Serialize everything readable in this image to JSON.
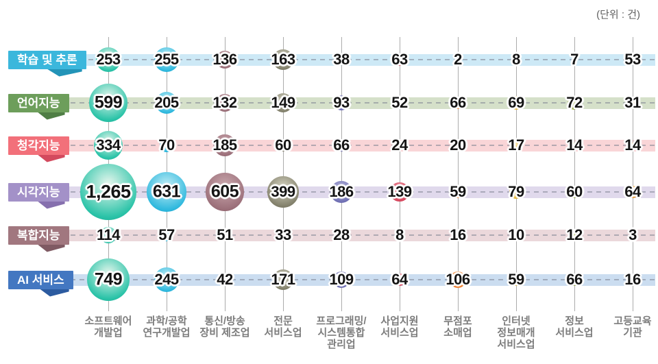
{
  "unit_label": "(단위 : 건)",
  "chart_data": {
    "type": "heatmap",
    "subtype": "bubble-matrix",
    "title": "",
    "unit": "건",
    "legend_position": "none",
    "grid": true,
    "columns": [
      {
        "label": "소프트웨어\n개발업",
        "bubble_color": "#2bc3a8",
        "bubble_light": "#e8f7ee",
        "bubble_dark": "#0fa18c"
      },
      {
        "label": "과학/공학\n연구개발업",
        "bubble_color": "#30b9de",
        "bubble_light": "#c6eff6",
        "bubble_dark": "#0e95c0"
      },
      {
        "label": "통신/방송\n장비 제조업",
        "bubble_color": "#9c707a",
        "bubble_light": "#cba9af",
        "bubble_dark": "#7e525c"
      },
      {
        "label": "전문\n서비스업",
        "bubble_color": "#83816c",
        "bubble_light": "#d6d4c2",
        "bubble_dark": "#676553"
      },
      {
        "label": "프로그래밍/\n시스템통합\n관리업",
        "bubble_color": "#7171b5",
        "bubble_light": "#bcbcde",
        "bubble_dark": "#55559a"
      },
      {
        "label": "사업지원\n서비스업",
        "bubble_color": "#d94a60",
        "bubble_light": "#ec9fab",
        "bubble_dark": "#b82f48"
      },
      {
        "label": "무점포\n소매업",
        "bubble_color": "#f08233",
        "bubble_light": "#fbc998",
        "bubble_dark": "#d3661a"
      },
      {
        "label": "인터넷\n정보매개\n서비스업",
        "bubble_color": "#e7bb42",
        "bubble_light": "#f8e3a8",
        "bubble_dark": "#c89b28"
      },
      {
        "label": "정보\n서비스업",
        "bubble_color": "#94a645",
        "bubble_light": "#d9e2a9",
        "bubble_dark": "#778a2f"
      },
      {
        "label": "고등교육\n기관",
        "bubble_color": "#ea9c34",
        "bubble_light": "#f9d49c",
        "bubble_dark": "#cc7f1e"
      }
    ],
    "rows": [
      {
        "label": "학습 및 추론",
        "ribbon_color": "#3bb7dc",
        "fold_color": "#2394b8",
        "band_color": "#cde9f6",
        "values": [
          253,
          255,
          136,
          163,
          38,
          63,
          2,
          8,
          7,
          53
        ]
      },
      {
        "label": "언어지능",
        "ribbon_color": "#6d9e5b",
        "fold_color": "#4f7e45",
        "band_color": "#d5e0c9",
        "values": [
          599,
          205,
          132,
          149,
          93,
          52,
          66,
          69,
          72,
          31
        ]
      },
      {
        "label": "청각지능",
        "ribbon_color": "#f2707a",
        "fold_color": "#d34a5e",
        "band_color": "#f9d5d7",
        "values": [
          334,
          70,
          185,
          60,
          66,
          24,
          20,
          17,
          14,
          14
        ]
      },
      {
        "label": "시각지능",
        "ribbon_color": "#a391c8",
        "fold_color": "#8670ae",
        "band_color": "#e0d9ec",
        "values": [
          1265,
          631,
          605,
          399,
          186,
          139,
          59,
          79,
          60,
          64
        ]
      },
      {
        "label": "복합지능",
        "ribbon_color": "#a1777f",
        "fold_color": "#7f5a63",
        "band_color": "#ebd8db",
        "values": [
          114,
          57,
          51,
          33,
          28,
          8,
          16,
          10,
          12,
          3
        ]
      },
      {
        "label": "AI 서비스",
        "ribbon_color": "#4377c1",
        "fold_color": "#2c5ba0",
        "band_color": "#cbddf0",
        "values": [
          749,
          245,
          42,
          171,
          109,
          64,
          106,
          59,
          66,
          16
        ]
      }
    ],
    "grid_line_color": "#ababab",
    "dash_line_color": "rgba(125,130,145,0.55)"
  }
}
